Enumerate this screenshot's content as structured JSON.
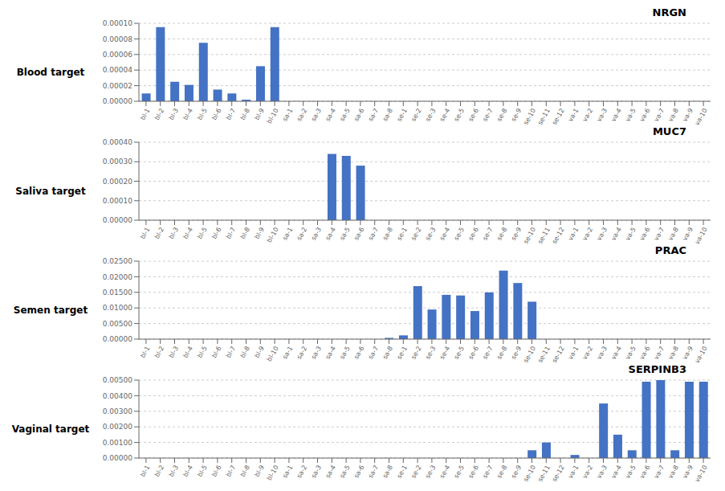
{
  "chart_data": [
    {
      "type": "bar",
      "title": "NRGN",
      "ylabel": "Blood target",
      "categories": [
        "bl-1",
        "bl-2",
        "bl-3",
        "bl-4",
        "bl-5",
        "bl-6",
        "bl-7",
        "bl-8",
        "bl-9",
        "bl-10",
        "sa-1",
        "sa-2",
        "sa-3",
        "sa-4",
        "sa-5",
        "sa-6",
        "sa-7",
        "sa-8",
        "se-1",
        "se-2",
        "se-3",
        "se-4",
        "se-5",
        "se-6",
        "se-7",
        "se-8",
        "se-9",
        "se-10",
        "se-11",
        "se-12",
        "va-1",
        "va-2",
        "va-3",
        "va-4",
        "va-5",
        "va-6",
        "va-7",
        "va-8",
        "va-9",
        "va-10"
      ],
      "values": [
        1e-05,
        9.5e-05,
        2.5e-05,
        2.1e-05,
        7.5e-05,
        1.5e-05,
        1e-05,
        2e-06,
        4.5e-05,
        9.5e-05,
        0.0,
        0.0,
        0.0,
        0.0,
        0.0,
        0.0,
        0.0,
        0.0,
        0.0,
        0.0,
        0.0,
        0.0,
        0.0,
        0.0,
        0.0,
        0.0,
        0.0,
        0.0,
        0.0,
        0.0,
        0.0,
        0.0,
        0.0,
        0.0,
        0.0,
        0.0,
        0.0,
        0.0,
        0.0,
        0.0
      ],
      "color": "#4472C4",
      "ylim": [
        0,
        0.0001
      ],
      "yticks": [
        {
          "value": 0.0,
          "label": "0.00000"
        },
        {
          "value": 2e-05,
          "label": "0.00002"
        },
        {
          "value": 4e-05,
          "label": "0.00004"
        },
        {
          "value": 6e-05,
          "label": "0.00006"
        },
        {
          "value": 8e-05,
          "label": "0.00008"
        },
        {
          "value": 0.0001,
          "label": "0.00010"
        }
      ],
      "grid": true
    },
    {
      "type": "bar",
      "title": "MUC7",
      "ylabel": "Saliva target",
      "categories": [
        "bl-1",
        "bl-2",
        "bl-3",
        "bl-4",
        "bl-5",
        "bl-6",
        "bl-7",
        "bl-8",
        "bl-9",
        "bl-10",
        "sa-1",
        "sa-2",
        "sa-3",
        "sa-4",
        "sa-5",
        "sa-6",
        "sa-7",
        "sa-8",
        "se-1",
        "se-2",
        "se-3",
        "se-4",
        "se-5",
        "se-6",
        "se-7",
        "se-8",
        "se-9",
        "se-10",
        "se-11",
        "se-12",
        "va-1",
        "va-2",
        "va-3",
        "va-4",
        "va-5",
        "va-6",
        "va-7",
        "va-8",
        "va-9",
        "va-10"
      ],
      "values": [
        0.0,
        0.0,
        0.0,
        0.0,
        0.0,
        0.0,
        0.0,
        0.0,
        0.0,
        0.0,
        0.0,
        0.0,
        0.0,
        0.00034,
        0.00033,
        0.00028,
        0.0,
        0.0,
        0.0,
        0.0,
        0.0,
        0.0,
        0.0,
        0.0,
        0.0,
        0.0,
        0.0,
        0.0,
        0.0,
        0.0,
        0.0,
        0.0,
        0.0,
        0.0,
        0.0,
        0.0,
        0.0,
        0.0,
        0.0,
        0.0
      ],
      "color": "#4472C4",
      "ylim": [
        0,
        0.0004
      ],
      "yticks": [
        {
          "value": 0.0,
          "label": "0.00000"
        },
        {
          "value": 0.0001,
          "label": "0.00010"
        },
        {
          "value": 0.0002,
          "label": "0.00020"
        },
        {
          "value": 0.0003,
          "label": "0.00030"
        },
        {
          "value": 0.0004,
          "label": "0.00040"
        }
      ],
      "grid": true
    },
    {
      "type": "bar",
      "title": "PRAC",
      "ylabel": "Semen target",
      "categories": [
        "bl-1",
        "bl-2",
        "bl-3",
        "bl-4",
        "bl-5",
        "bl-6",
        "bl-7",
        "bl-8",
        "bl-9",
        "bl-10",
        "sa-1",
        "sa-2",
        "sa-3",
        "sa-4",
        "sa-5",
        "sa-6",
        "sa-7",
        "sa-8",
        "se-1",
        "se-2",
        "se-3",
        "se-4",
        "se-5",
        "se-6",
        "se-7",
        "se-8",
        "se-9",
        "se-10",
        "se-11",
        "se-12",
        "va-1",
        "va-2",
        "va-3",
        "va-4",
        "va-5",
        "va-6",
        "va-7",
        "va-8",
        "va-9",
        "va-10"
      ],
      "values": [
        0.0,
        0.0,
        0.0,
        0.0,
        0.0,
        0.0,
        0.0,
        0.0,
        0.0,
        0.0,
        0.0,
        0.0,
        0.0,
        0.0,
        0.0,
        0.0,
        0.0,
        0.0004,
        0.0012,
        0.017,
        0.0095,
        0.0142,
        0.014,
        0.009,
        0.015,
        0.022,
        0.018,
        0.012,
        0.0,
        0.0,
        0.0,
        0.0,
        0.0,
        0.0,
        0.0,
        0.0,
        0.0,
        0.0,
        0.0,
        0.0
      ],
      "color": "#4472C4",
      "ylim": [
        0,
        0.025
      ],
      "yticks": [
        {
          "value": 0.0,
          "label": "0.00000"
        },
        {
          "value": 0.005,
          "label": "0.00500"
        },
        {
          "value": 0.01,
          "label": "0.01000"
        },
        {
          "value": 0.015,
          "label": "0.01500"
        },
        {
          "value": 0.02,
          "label": "0.02000"
        },
        {
          "value": 0.025,
          "label": "0.02500"
        }
      ],
      "grid": true
    },
    {
      "type": "bar",
      "title": "SERPINB3",
      "ylabel": "Vaginal target",
      "categories": [
        "bl-1",
        "bl-2",
        "bl-3",
        "bl-4",
        "bl-5",
        "bl-6",
        "bl-7",
        "bl-8",
        "bl-9",
        "bl-10",
        "sa-1",
        "sa-2",
        "sa-3",
        "sa-4",
        "sa-5",
        "sa-6",
        "sa-7",
        "sa-8",
        "se-1",
        "se-2",
        "se-3",
        "se-4",
        "se-5",
        "se-6",
        "se-7",
        "se-8",
        "se-9",
        "se-10",
        "se-11",
        "se-12",
        "va-1",
        "va-2",
        "va-3",
        "va-4",
        "va-5",
        "va-6",
        "va-7",
        "va-8",
        "va-9",
        "va-10"
      ],
      "values": [
        0.0,
        0.0,
        0.0,
        0.0,
        0.0,
        0.0,
        0.0,
        0.0,
        0.0,
        0.0,
        0.0,
        0.0,
        0.0,
        0.0,
        0.0,
        0.0,
        0.0,
        0.0,
        0.0,
        0.0,
        0.0,
        0.0,
        0.0,
        0.0,
        0.0,
        0.0,
        0.0,
        0.0005,
        0.001,
        0.0,
        0.0002,
        0.0,
        0.0035,
        0.0015,
        0.0005,
        0.0049,
        0.005,
        0.0005,
        0.0049,
        0.0049
      ],
      "color": "#4472C4",
      "ylim": [
        0,
        0.005
      ],
      "yticks": [
        {
          "value": 0.0,
          "label": "0.00000"
        },
        {
          "value": 0.001,
          "label": "0.00100"
        },
        {
          "value": 0.002,
          "label": "0.00200"
        },
        {
          "value": 0.003,
          "label": "0.00300"
        },
        {
          "value": 0.004,
          "label": "0.00400"
        },
        {
          "value": 0.005,
          "label": "0.00500"
        }
      ],
      "grid": true
    }
  ]
}
